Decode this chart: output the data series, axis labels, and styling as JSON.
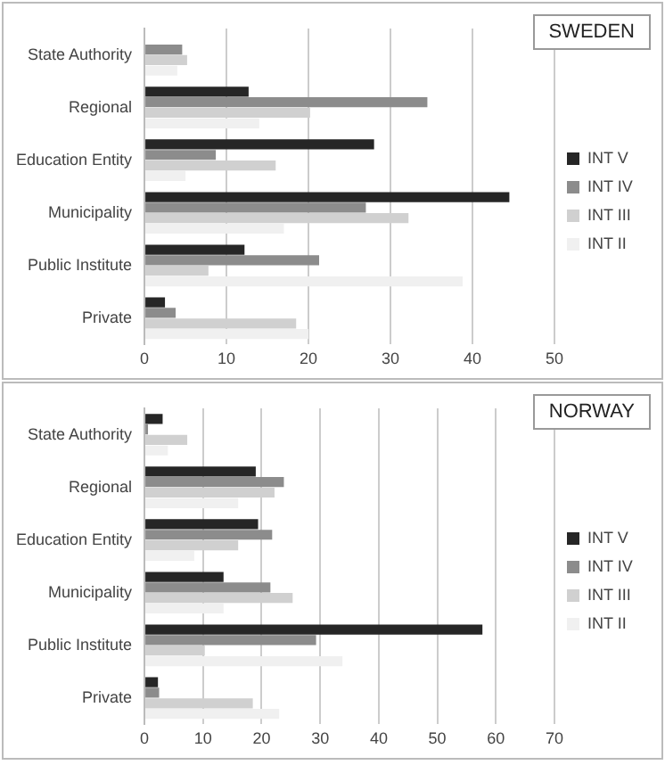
{
  "chart_data": [
    {
      "type": "bar",
      "orientation": "horizontal",
      "title": "SWEDEN",
      "categories": [
        "State Authority",
        "Regional",
        "Education Entity",
        "Municipality",
        "Public Institute",
        "Private"
      ],
      "series": [
        {
          "name": "INT V",
          "color": "#262626",
          "values": [
            0,
            12.7,
            28,
            44.5,
            12.2,
            2.5
          ]
        },
        {
          "name": "INT IV",
          "color": "#8c8c8c",
          "values": [
            4.6,
            34.5,
            8.7,
            27,
            21.3,
            3.8
          ]
        },
        {
          "name": "INT III",
          "color": "#d0d0d0",
          "values": [
            5.2,
            20.2,
            16,
            32.2,
            7.8,
            18.5
          ]
        },
        {
          "name": "INT II",
          "color": "#f0f0f0",
          "values": [
            4,
            14,
            5,
            17,
            38.8,
            20
          ]
        }
      ],
      "xlim": [
        0,
        50
      ],
      "xticks": [
        0,
        10,
        20,
        30,
        40,
        50
      ],
      "grid": "x",
      "legend": "right"
    },
    {
      "type": "bar",
      "orientation": "horizontal",
      "title": "NORWAY",
      "categories": [
        "State Authority",
        "Regional",
        "Education Entity",
        "Municipality",
        "Public Institute",
        "Private"
      ],
      "series": [
        {
          "name": "INT V",
          "color": "#262626",
          "values": [
            3.1,
            19,
            19.4,
            13.5,
            57.7,
            2.3
          ]
        },
        {
          "name": "INT IV",
          "color": "#8c8c8c",
          "values": [
            0.6,
            23.8,
            21.8,
            21.5,
            29.3,
            2.5
          ]
        },
        {
          "name": "INT III",
          "color": "#d0d0d0",
          "values": [
            7.3,
            22.2,
            16,
            25.3,
            10.3,
            18.5
          ]
        },
        {
          "name": "INT II",
          "color": "#f0f0f0",
          "values": [
            4,
            16,
            8.5,
            13.5,
            33.8,
            23
          ]
        }
      ],
      "xlim": [
        0,
        70
      ],
      "xticks": [
        0,
        10,
        20,
        30,
        40,
        50,
        60,
        70
      ],
      "grid": "x",
      "legend": "right"
    }
  ]
}
